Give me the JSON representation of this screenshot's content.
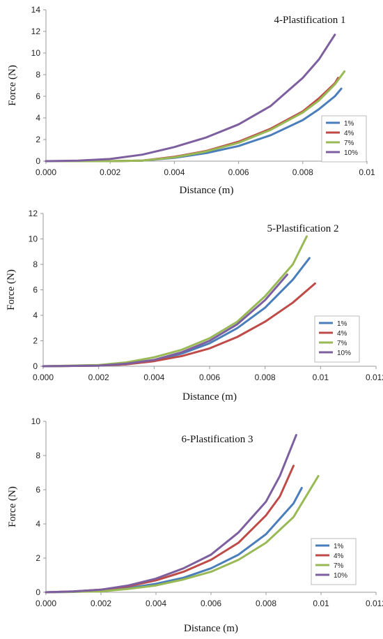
{
  "series_colors": {
    "1%": "#4a7ebb",
    "4%": "#be4b48",
    "7%": "#98b954",
    "10%": "#7d5fa0"
  },
  "chart_data": [
    {
      "type": "line",
      "title": "4-Plastification 1",
      "xlabel": "Distance (m)",
      "ylabel": "Force (N)",
      "xlim": [
        0,
        0.01
      ],
      "ylim": [
        0,
        14
      ],
      "x_ticks": [
        "0.000",
        "0.002",
        "0.004",
        "0.006",
        "0.008",
        "0.01"
      ],
      "y_ticks": [
        "0",
        "2",
        "4",
        "6",
        "8",
        "10",
        "12",
        "14"
      ],
      "legend_position": "right",
      "series": [
        {
          "name": "1%",
          "x": [
            0,
            0.002,
            0.003,
            0.004,
            0.005,
            0.006,
            0.007,
            0.008,
            0.0085,
            0.009,
            0.0092
          ],
          "y": [
            0,
            0,
            0.05,
            0.3,
            0.75,
            1.4,
            2.4,
            3.8,
            4.8,
            6.0,
            6.7
          ]
        },
        {
          "name": "4%",
          "x": [
            0,
            0.002,
            0.003,
            0.004,
            0.005,
            0.006,
            0.007,
            0.008,
            0.0085,
            0.009,
            0.0091
          ],
          "y": [
            0,
            0,
            0.05,
            0.4,
            0.95,
            1.8,
            3.0,
            4.6,
            5.8,
            7.2,
            7.7
          ]
        },
        {
          "name": "7%",
          "x": [
            0,
            0.002,
            0.003,
            0.004,
            0.005,
            0.006,
            0.007,
            0.008,
            0.0085,
            0.009,
            0.0093
          ],
          "y": [
            0,
            0,
            0.05,
            0.35,
            0.9,
            1.7,
            2.9,
            4.5,
            5.6,
            7.1,
            8.3
          ]
        },
        {
          "name": "10%",
          "x": [
            0,
            0.001,
            0.002,
            0.003,
            0.004,
            0.005,
            0.006,
            0.007,
            0.008,
            0.0085,
            0.009
          ],
          "y": [
            0,
            0.05,
            0.2,
            0.6,
            1.3,
            2.2,
            3.4,
            5.1,
            7.7,
            9.4,
            11.7
          ]
        }
      ]
    },
    {
      "type": "line",
      "title": "5-Plastification 2",
      "xlabel": "Distance (m)",
      "ylabel": "Force (N)",
      "xlim": [
        0,
        0.012
      ],
      "ylim": [
        0,
        12
      ],
      "x_ticks": [
        "0.000",
        "0.002",
        "0.004",
        "0.006",
        "0.008",
        "0.01",
        "0.012"
      ],
      "y_ticks": [
        "0",
        "2",
        "4",
        "6",
        "8",
        "10",
        "12"
      ],
      "legend_position": "right",
      "series": [
        {
          "name": "1%",
          "x": [
            0,
            0.002,
            0.003,
            0.004,
            0.005,
            0.006,
            0.007,
            0.008,
            0.009,
            0.0096
          ],
          "y": [
            0,
            0.05,
            0.15,
            0.45,
            1.0,
            1.8,
            3.0,
            4.6,
            6.8,
            8.5
          ]
        },
        {
          "name": "4%",
          "x": [
            0,
            0.002,
            0.003,
            0.004,
            0.005,
            0.006,
            0.007,
            0.008,
            0.009,
            0.0098
          ],
          "y": [
            0,
            0.05,
            0.15,
            0.4,
            0.8,
            1.4,
            2.3,
            3.5,
            5.0,
            6.5
          ]
        },
        {
          "name": "7%",
          "x": [
            0,
            0.002,
            0.003,
            0.004,
            0.005,
            0.006,
            0.007,
            0.008,
            0.009,
            0.0095
          ],
          "y": [
            0,
            0.1,
            0.3,
            0.7,
            1.3,
            2.2,
            3.5,
            5.5,
            8.0,
            10.2
          ]
        },
        {
          "name": "10%",
          "x": [
            0,
            0.002,
            0.003,
            0.004,
            0.005,
            0.006,
            0.007,
            0.008,
            0.0088
          ],
          "y": [
            0,
            0.05,
            0.2,
            0.5,
            1.1,
            2.0,
            3.3,
            5.2,
            7.2
          ]
        }
      ]
    },
    {
      "type": "line",
      "title": "6-Plastification 3",
      "xlabel": "Distance (m)",
      "ylabel": "Force (N)",
      "xlim": [
        0,
        0.012
      ],
      "ylim": [
        0,
        10
      ],
      "x_ticks": [
        "0.000",
        "0.002",
        "0.004",
        "0.006",
        "0.008",
        "0.01",
        "0.012"
      ],
      "y_ticks": [
        "0",
        "2",
        "4",
        "6",
        "8",
        "10"
      ],
      "legend_position": "right",
      "series": [
        {
          "name": "1%",
          "x": [
            0,
            0.001,
            0.002,
            0.003,
            0.004,
            0.005,
            0.006,
            0.007,
            0.008,
            0.009,
            0.0093
          ],
          "y": [
            0,
            0.02,
            0.1,
            0.25,
            0.5,
            0.85,
            1.4,
            2.2,
            3.4,
            5.2,
            6.1
          ]
        },
        {
          "name": "4%",
          "x": [
            0,
            0.001,
            0.002,
            0.003,
            0.004,
            0.005,
            0.006,
            0.007,
            0.008,
            0.0085,
            0.009
          ],
          "y": [
            0,
            0.05,
            0.15,
            0.35,
            0.7,
            1.2,
            1.9,
            2.9,
            4.5,
            5.6,
            7.4
          ]
        },
        {
          "name": "7%",
          "x": [
            0,
            0.002,
            0.003,
            0.004,
            0.005,
            0.006,
            0.007,
            0.008,
            0.009,
            0.0099
          ],
          "y": [
            0,
            0.05,
            0.2,
            0.4,
            0.75,
            1.2,
            1.9,
            2.9,
            4.4,
            6.8
          ]
        },
        {
          "name": "10%",
          "x": [
            0,
            0.001,
            0.002,
            0.003,
            0.004,
            0.005,
            0.006,
            0.007,
            0.008,
            0.0085,
            0.0091
          ],
          "y": [
            0,
            0.05,
            0.15,
            0.4,
            0.8,
            1.4,
            2.2,
            3.5,
            5.3,
            6.8,
            9.2
          ]
        }
      ]
    }
  ]
}
